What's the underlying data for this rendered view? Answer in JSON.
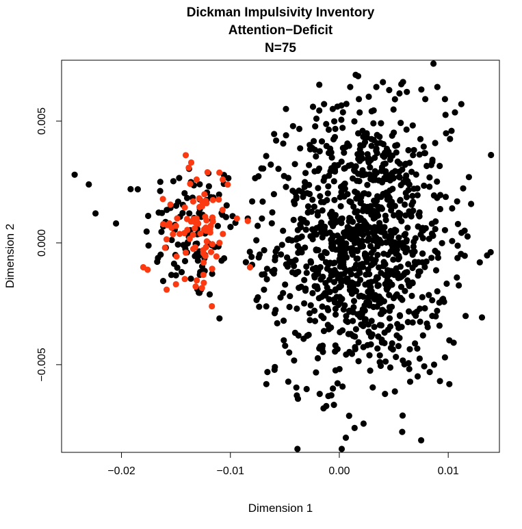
{
  "chart_data": {
    "type": "scatter",
    "title_lines": [
      "Dickman Impulsivity Inventory",
      "Attention−Deficit",
      "N=75"
    ],
    "xlabel": "Dimension 1",
    "ylabel": "Dimension 2",
    "xlim": [
      -0.0255,
      0.0147
    ],
    "ylim": [
      -0.0086,
      0.0075
    ],
    "grid": false,
    "x_ticks": [
      {
        "value": -0.02,
        "label": "−0.02"
      },
      {
        "value": -0.01,
        "label": "−0.01"
      },
      {
        "value": 0.0,
        "label": "0.00"
      },
      {
        "value": 0.01,
        "label": "0.01"
      }
    ],
    "y_ticks": [
      {
        "value": -0.005,
        "label": "−0.005"
      },
      {
        "value": 0.0,
        "label": "0.000"
      },
      {
        "value": 0.005,
        "label": "0.005"
      }
    ],
    "series": [
      {
        "color": "#000000",
        "clusters": [
          {
            "center": [
              -0.0135,
              0.0005
            ],
            "sd": [
              0.0022,
              0.0015
            ],
            "n": 110
          },
          {
            "center": [
              0.0022,
              0.0
            ],
            "sd": [
              0.0039,
              0.0027
            ],
            "n": 1050
          }
        ],
        "points": [
          [
            -0.0243,
            0.0028
          ],
          [
            -0.023,
            0.0024
          ],
          [
            -0.0205,
            0.0008
          ],
          [
            -0.0185,
            0.0022
          ],
          [
            -0.0098,
            0.0011
          ],
          [
            -0.0084,
            0.001
          ],
          [
            -0.011,
            -0.0031
          ],
          [
            -0.008,
            0.0017
          ],
          [
            -0.0058,
            0.0042
          ],
          [
            -0.0049,
            0.0055
          ],
          [
            -0.0066,
            -0.0053
          ],
          [
            -0.0067,
            -0.0058
          ],
          [
            -0.0038,
            -0.0064
          ],
          [
            0.0006,
            -0.008
          ],
          [
            0.0014,
            -0.0076
          ],
          [
            0.0009,
            -0.0071
          ],
          [
            0.0015,
            0.0069
          ],
          [
            0.004,
            0.0066
          ],
          [
            0.009,
            0.0064
          ],
          [
            0.0097,
            0.0059
          ],
          [
            0.0112,
            0.0057
          ],
          [
            0.0129,
            -0.0008
          ],
          [
            0.0116,
            -0.003
          ],
          [
            0.0119,
            0.0027
          ],
          [
            0.0121,
            0.0016
          ],
          [
            0.0101,
            -0.0058
          ],
          [
            0.0115,
            0.0005
          ],
          [
            -0.0039,
            -0.0027
          ],
          [
            -0.0049,
            0.0023
          ],
          [
            -0.006,
            0.002
          ],
          [
            -0.0071,
            0.001
          ],
          [
            -0.0075,
            0.0007
          ],
          [
            -0.0069,
            -0.0003
          ],
          [
            -0.008,
            -0.0009
          ],
          [
            -0.0071,
            -0.0013
          ],
          [
            -0.0057,
            -0.0033
          ],
          [
            -0.0051,
            -0.004
          ],
          [
            -0.0046,
            -0.0045
          ],
          [
            -0.003,
            -0.006
          ],
          [
            -0.0018,
            -0.0062
          ],
          [
            -0.0012,
            -0.0067
          ],
          [
            0.0003,
            -0.0059
          ],
          [
            0.0042,
            -0.0062
          ],
          [
            0.0051,
            -0.0061
          ],
          [
            0.0065,
            -0.0057
          ],
          [
            0.0083,
            -0.0053
          ],
          [
            0.0097,
            -0.0047
          ],
          [
            0.0101,
            -0.004
          ],
          [
            0.0105,
            -0.0041
          ],
          [
            0.0087,
            -0.005
          ],
          [
            0.0092,
            -0.0034
          ],
          [
            0.0103,
            0.0046
          ],
          [
            0.0098,
            0.0045
          ],
          [
            0.0088,
            0.0041
          ],
          [
            0.0027,
            0.006
          ],
          [
            0.0018,
            0.0059
          ],
          [
            -0.0021,
            0.0051
          ],
          [
            -0.0014,
            0.0057
          ],
          [
            -0.0006,
            0.0055
          ],
          [
            0.001,
            0.0064
          ],
          [
            0.0034,
            0.0064
          ],
          [
            0.0062,
            0.0062
          ]
        ]
      },
      {
        "color": "#fb3a12",
        "clusters": [
          {
            "center": [
              -0.013,
              0.0007
            ],
            "sd": [
              0.0014,
              0.0011
            ],
            "n": 68
          }
        ],
        "points": [
          [
            -0.0141,
            0.0036
          ],
          [
            -0.0136,
            0.0033
          ],
          [
            -0.0131,
            0.0026
          ],
          [
            -0.0107,
            0.0026
          ],
          [
            -0.0094,
            0.001
          ],
          [
            -0.011,
            0.0
          ],
          [
            -0.0117,
            -0.0026
          ],
          [
            -0.015,
            -0.0017
          ],
          [
            -0.018,
            -0.001
          ],
          [
            -0.0176,
            -0.0011
          ],
          [
            -0.016,
            -0.0002
          ],
          [
            -0.0156,
            0.0008
          ],
          [
            -0.0162,
            0.0018
          ],
          [
            -0.0121,
            0.0029
          ],
          [
            -0.0126,
            0.0015
          ],
          [
            -0.0118,
            0.0007
          ],
          [
            -0.0084,
            0.0009
          ],
          [
            -0.0082,
            -0.001
          ],
          [
            -0.0141,
            -0.0004
          ],
          [
            -0.0125,
            -0.0003
          ]
        ]
      }
    ]
  }
}
